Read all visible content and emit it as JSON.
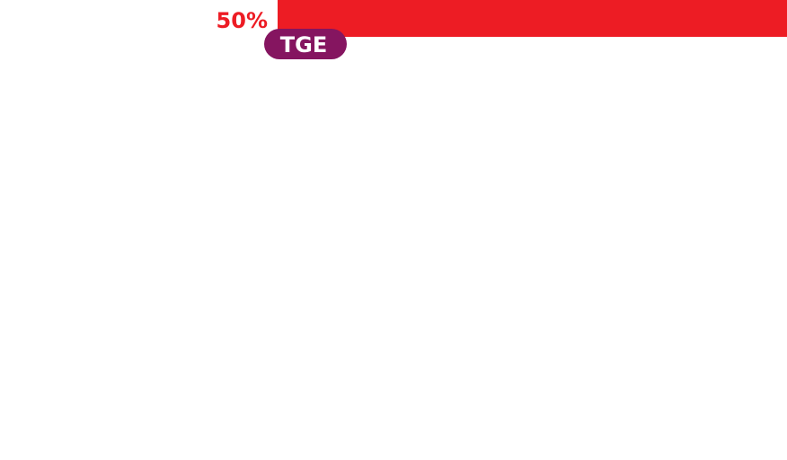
{
  "chart_data": {
    "type": "bar",
    "orientation": "horizontal",
    "categories": [
      "TGE"
    ],
    "values": [
      50
    ],
    "value_labels": [
      "50%"
    ],
    "xlim": [
      0,
      100
    ],
    "milestones": [
      {
        "label": "TGE",
        "value": 0
      }
    ],
    "colors": {
      "bar": "#ed1c24",
      "value_label": "#ed1c24",
      "milestone_badge": "#851560",
      "milestone_text": "#ffffff",
      "baseline": "#9a9a9a"
    }
  }
}
